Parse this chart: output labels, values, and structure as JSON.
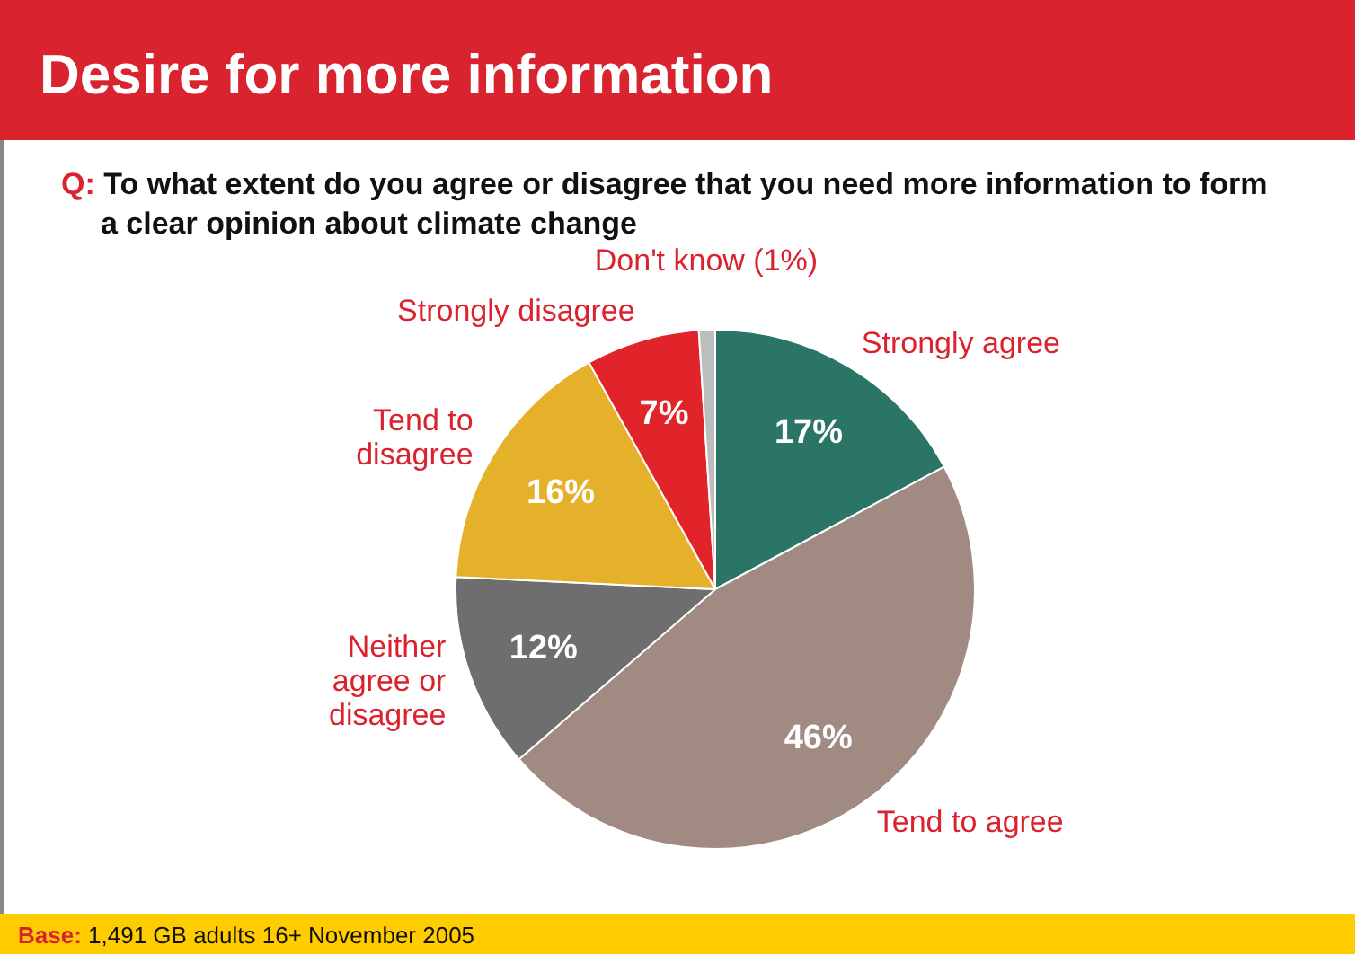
{
  "chart_data": {
    "type": "pie",
    "title": "Desire for more information",
    "subtitle": "Q: To what extent do you agree or disagree that you need more information to form a clear opinion about climate change",
    "categories": [
      "Strongly agree",
      "Tend to agree",
      "Neither agree or disagree",
      "Tend to disagree",
      "Strongly disagree",
      "Don't know (1%)"
    ],
    "values": [
      17,
      46,
      12,
      16,
      7,
      1
    ],
    "colors": [
      "#2a7565",
      "#a08a82",
      "#6e6e6e",
      "#e5b12a",
      "#e0242a",
      "#bdbdbd"
    ],
    "value_labels": [
      "17%",
      "46%",
      "12%",
      "16%",
      "7%",
      null
    ],
    "legend": false,
    "annotations": [
      "Base: 1,491 GB adults 16+ November 2005"
    ]
  }
}
